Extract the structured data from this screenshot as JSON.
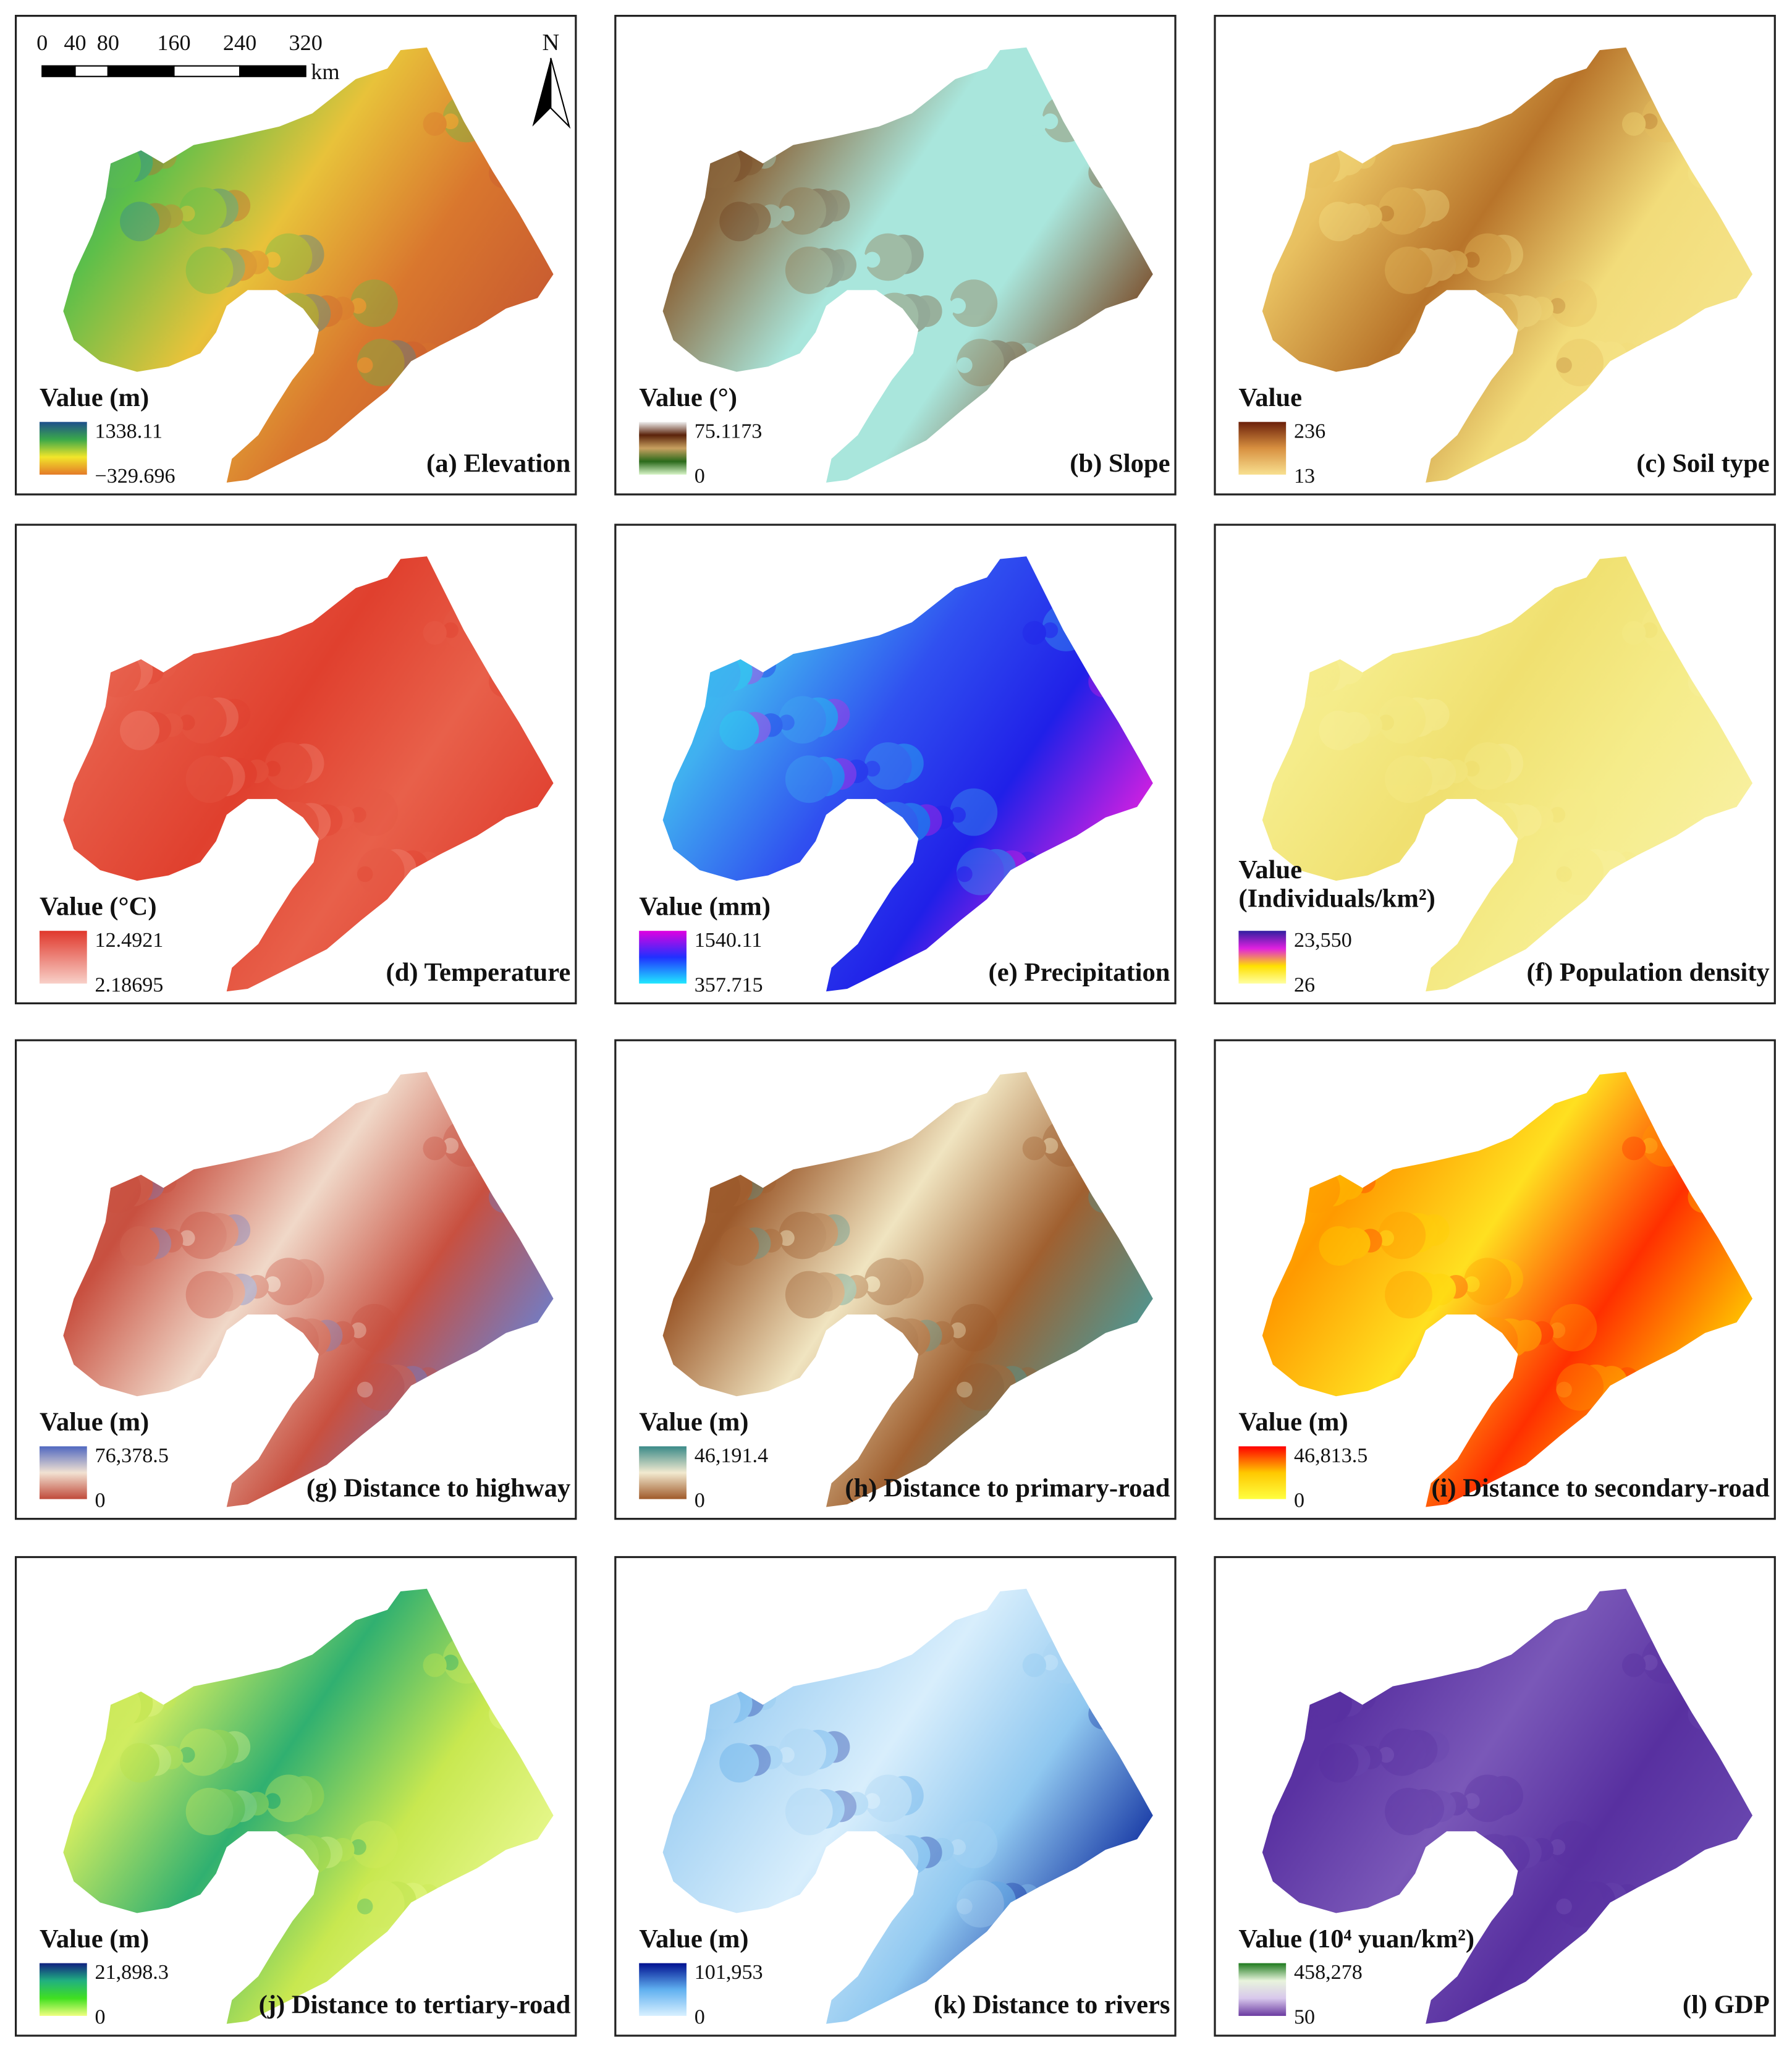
{
  "scale_bar": {
    "ticks": [
      "0",
      "40",
      "80",
      "160",
      "240",
      "320"
    ],
    "unit": "km"
  },
  "north": "N",
  "panels": [
    {
      "caption": "(a) Elevation",
      "legend_title": [
        "Value (m)"
      ],
      "max": "1338.11",
      "min": "−329.696",
      "map_colors": [
        "#2f7fa0",
        "#5cbf4a",
        "#e8c23a",
        "#d9772e",
        "#c85a30"
      ],
      "legend_colors": [
        "#1e4f8c",
        "#3aa84a",
        "#f2e62a",
        "#e47a28"
      ]
    },
    {
      "caption": "(b) Slope",
      "legend_title": [
        "Value (°)"
      ],
      "max": "75.1173",
      "min": "0",
      "map_colors": [
        "#6b3a1c",
        "#8c6a40",
        "#a9e6dc",
        "#a9e6dc",
        "#7a4a26"
      ],
      "legend_colors": [
        "#f0f0f0",
        "#5a220a",
        "#c8a060",
        "#2a6a1a",
        "#d8f5c8"
      ]
    },
    {
      "caption": "(c) Soil type",
      "legend_title": [
        "Value"
      ],
      "max": "236",
      "min": "13",
      "map_colors": [
        "#f5e48a",
        "#e8c060",
        "#b8742a",
        "#f2dc7a",
        "#f5e48a"
      ],
      "legend_colors": [
        "#6b200a",
        "#d89040",
        "#f8e090"
      ]
    },
    {
      "caption": "(d) Temperature",
      "legend_title": [
        "Value (°C)"
      ],
      "max": "12.4921",
      "min": "2.18695",
      "map_colors": [
        "#f08a78",
        "#e65a46",
        "#e0402e",
        "#e8604a",
        "#e04030"
      ],
      "legend_colors": [
        "#e0382c",
        "#f8d0c8"
      ]
    },
    {
      "caption": "(e) Precipitation",
      "legend_title": [
        "Value (mm)"
      ],
      "max": "1540.11",
      "min": "357.715",
      "map_colors": [
        "#28d8f0",
        "#40b0f0",
        "#3050f0",
        "#2020e8",
        "#e020e0"
      ],
      "legend_colors": [
        "#e000e0",
        "#2030ff",
        "#20e8ff"
      ]
    },
    {
      "caption": "(f) Population density",
      "legend_title": [
        "Value",
        "(Individuals/km²)"
      ],
      "max": "23,550",
      "min": "26",
      "map_colors": [
        "#f8f0a0",
        "#f5ec8a",
        "#f0e070",
        "#f5ec8a",
        "#f8f0a0"
      ],
      "legend_colors": [
        "#3020a0",
        "#e020e0",
        "#ffe000",
        "#ffffa0"
      ]
    },
    {
      "caption": "(g) Distance to highway",
      "legend_title": [
        "Value (m)"
      ],
      "max": "76,378.5",
      "min": "0",
      "map_colors": [
        "#d06a58",
        "#c85040",
        "#f0d8c8",
        "#c85040",
        "#6a80d0"
      ],
      "legend_colors": [
        "#5068c0",
        "#f2e2d2",
        "#c04a3a"
      ]
    },
    {
      "caption": "(h) Distance to primary-road",
      "legend_title": [
        "Value (m)"
      ],
      "max": "46,191.4",
      "min": "0",
      "map_colors": [
        "#a86838",
        "#9c5a2c",
        "#f0e4c0",
        "#a06030",
        "#4a9a98"
      ],
      "legend_colors": [
        "#3a8a88",
        "#f2ead0",
        "#a05a2a"
      ]
    },
    {
      "caption": "(i) Distance to secondary-road",
      "legend_title": [
        "Value (m)"
      ],
      "max": "46,813.5",
      "min": "0",
      "map_colors": [
        "#ffd400",
        "#ff9a00",
        "#ffe020",
        "#ff3000",
        "#ffd000"
      ],
      "legend_colors": [
        "#ff0000",
        "#ffc800",
        "#ffff40"
      ]
    },
    {
      "caption": "(j) Distance to tertiary-road",
      "legend_title": [
        "Value (m)"
      ],
      "max": "21,898.3",
      "min": "0",
      "map_colors": [
        "#b8e048",
        "#d0ec60",
        "#30b070",
        "#c8e850",
        "#e8f890"
      ],
      "legend_colors": [
        "#102080",
        "#20b080",
        "#40e020",
        "#f0ff80"
      ]
    },
    {
      "caption": "(k) Distance to rivers",
      "legend_title": [
        "Value (m)"
      ],
      "max": "101,953",
      "min": "0",
      "map_colors": [
        "#5aa8e8",
        "#a8d4f4",
        "#d8eefc",
        "#90c8f0",
        "#1030a0"
      ],
      "legend_colors": [
        "#001090",
        "#60b0f0",
        "#d8f0ff"
      ]
    },
    {
      "caption": "(l) GDP",
      "legend_title": [
        "Value (10⁴ yuan/km²)"
      ],
      "max": "458,278",
      "min": "50",
      "map_colors": [
        "#5830a0",
        "#5a32a2",
        "#7a58b8",
        "#5830a0",
        "#6a48b0"
      ],
      "legend_colors": [
        "#1e7a1e",
        "#e8f4dc",
        "#d8c8ec",
        "#6a3aa0"
      ]
    }
  ]
}
